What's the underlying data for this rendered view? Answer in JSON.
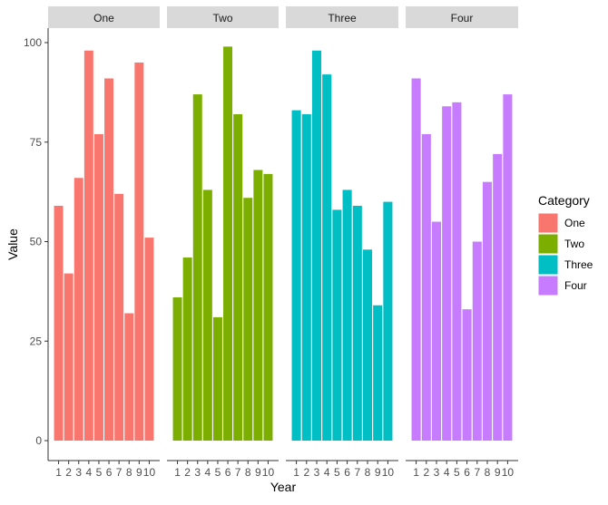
{
  "chart_data": {
    "type": "bar",
    "facet_by": "Category",
    "xlabel": "Year",
    "ylabel": "Value",
    "ylim": [
      0,
      100
    ],
    "yticks": [
      0,
      25,
      50,
      75,
      100
    ],
    "categories": [
      "1",
      "2",
      "3",
      "4",
      "5",
      "6",
      "7",
      "8",
      "9",
      "10"
    ],
    "series": [
      {
        "name": "One",
        "color": "#F8766D",
        "values": [
          59,
          42,
          66,
          98,
          77,
          91,
          62,
          32,
          95,
          51
        ]
      },
      {
        "name": "Two",
        "color": "#7CAE00",
        "values": [
          36,
          46,
          87,
          63,
          31,
          99,
          82,
          61,
          68,
          67
        ]
      },
      {
        "name": "Three",
        "color": "#00BFC4",
        "values": [
          83,
          82,
          98,
          92,
          58,
          63,
          59,
          48,
          34,
          60
        ]
      },
      {
        "name": "Four",
        "color": "#C77CFF",
        "values": [
          91,
          77,
          55,
          84,
          85,
          33,
          50,
          65,
          72,
          87
        ]
      }
    ],
    "grid": false,
    "legend": {
      "title": "Category",
      "position": "right"
    },
    "strip_background": "#D9D9D9"
  }
}
